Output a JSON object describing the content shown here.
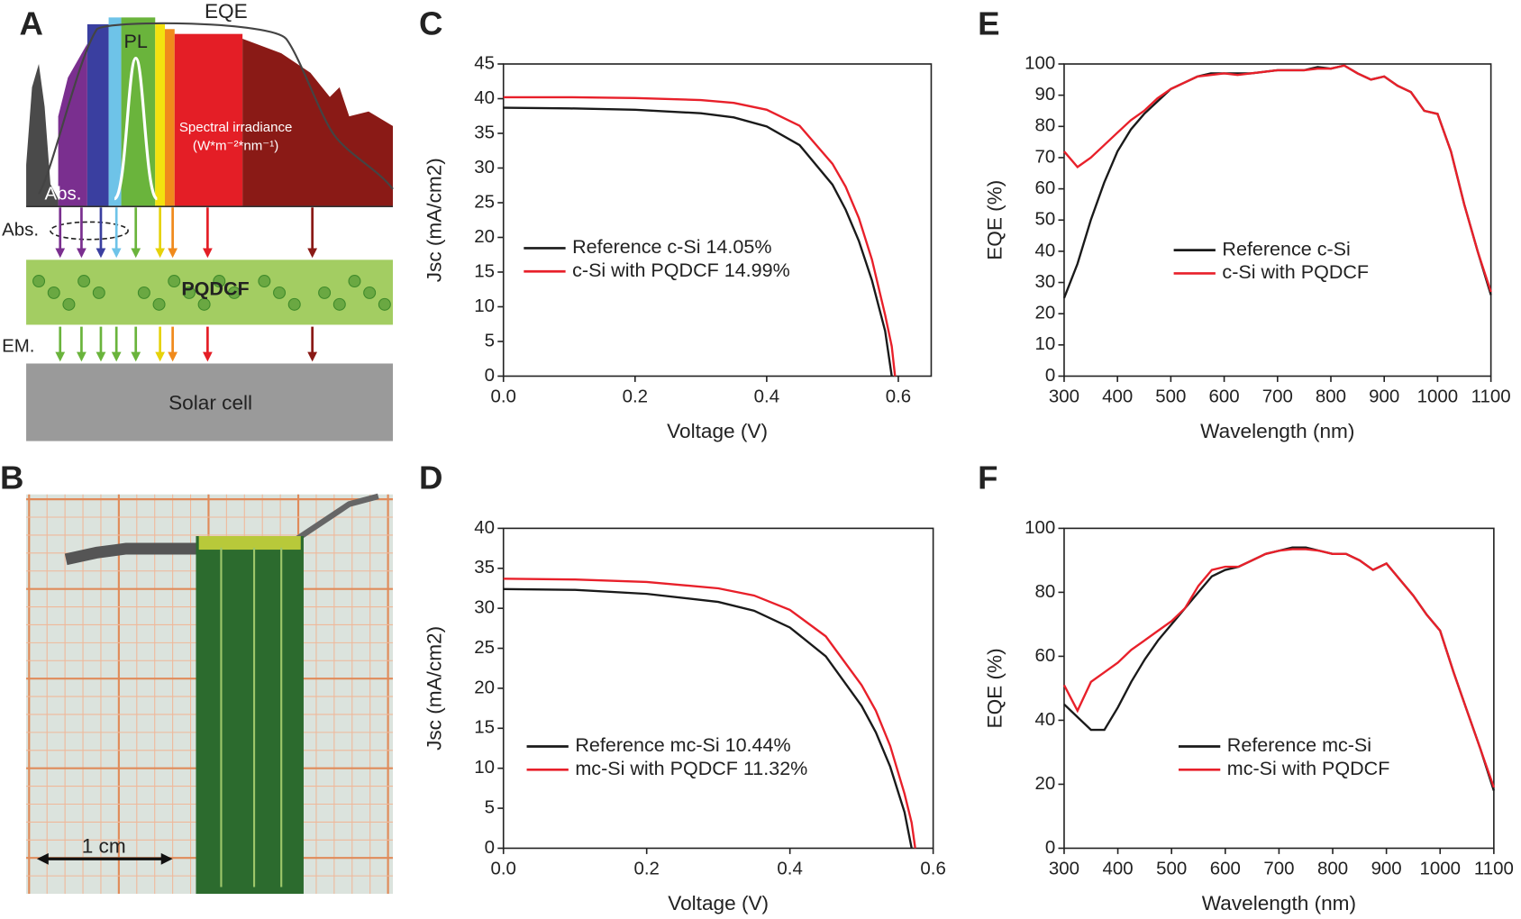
{
  "figure": {
    "panel_labels": [
      "A",
      "B",
      "C",
      "D",
      "E",
      "F"
    ],
    "schematic": {
      "eqe_label": "EQE",
      "pl_label": "PL",
      "irradiance_label": "Spectral irradiance",
      "irradiance_unit": "(W*m⁻²*nm⁻¹)",
      "abs_label": "Abs.",
      "abs_label_2": "Abs.",
      "film": "PQDCF",
      "em_label": "EM.",
      "cell": "Solar cell"
    },
    "photo": {
      "scale_label": "1 cm"
    }
  },
  "chart_data": [
    {
      "type": "line",
      "xlabel": "Voltage (V)",
      "ylabel": "Jsc (mA/cm2)",
      "x": [
        0,
        0.1,
        0.2,
        0.3,
        0.35,
        0.4,
        0.45,
        0.5,
        0.52,
        0.54,
        0.56,
        0.58,
        0.59,
        0.595
      ],
      "series": [
        {
          "name": "Reference c-Si 14.05%",
          "color": "#1a1a1a",
          "values": [
            38.7,
            38.6,
            38.4,
            37.9,
            37.3,
            36.0,
            33.3,
            27.6,
            24.0,
            19.5,
            13.8,
            6.5,
            0,
            null
          ]
        },
        {
          "name": "c-Si with PQDCF 14.99%",
          "color": "#e8202a",
          "values": [
            40.2,
            40.2,
            40.1,
            39.8,
            39.4,
            38.4,
            36.1,
            30.6,
            27.3,
            22.8,
            16.8,
            8.8,
            4.3,
            0
          ]
        }
      ],
      "xlim": [
        0,
        0.65
      ],
      "xticks": [
        {
          "value": 0,
          "label": "0.0"
        },
        0.2,
        0.4,
        0.6
      ],
      "ylim": [
        0,
        45
      ],
      "yticks": [
        0,
        5,
        10,
        15,
        20,
        25,
        30,
        35,
        40,
        45
      ]
    },
    {
      "type": "line",
      "xlabel": "Voltage (V)",
      "ylabel": "Jsc (mA/cm2)",
      "x": [
        0,
        0.1,
        0.2,
        0.3,
        0.35,
        0.4,
        0.45,
        0.5,
        0.52,
        0.54,
        0.56,
        0.57,
        0.575
      ],
      "series": [
        {
          "name": "Reference mc-Si 10.44%",
          "color": "#1a1a1a",
          "values": [
            32.4,
            32.3,
            31.8,
            30.8,
            29.7,
            27.6,
            24.0,
            17.8,
            14.5,
            10.2,
            4.5,
            0,
            null
          ]
        },
        {
          "name": "mc-Si with PQDCF 11.32%",
          "color": "#e8202a",
          "values": [
            33.7,
            33.6,
            33.3,
            32.5,
            31.6,
            29.8,
            26.5,
            20.4,
            17.2,
            12.8,
            6.8,
            3.2,
            0
          ]
        }
      ],
      "xlim": [
        0,
        0.6
      ],
      "xticks": [
        {
          "value": 0,
          "label": "0.0"
        },
        0.2,
        0.4,
        0.6
      ],
      "ylim": [
        0,
        40
      ],
      "yticks": [
        0,
        5,
        10,
        15,
        20,
        25,
        30,
        35,
        40
      ]
    },
    {
      "type": "line",
      "xlabel": "Wavelength (nm)",
      "ylabel": "EQE (%)",
      "x": [
        300,
        325,
        350,
        375,
        400,
        425,
        450,
        475,
        500,
        525,
        550,
        575,
        600,
        625,
        650,
        675,
        700,
        725,
        750,
        775,
        800,
        825,
        850,
        875,
        900,
        925,
        950,
        975,
        1000,
        1025,
        1050,
        1075,
        1100
      ],
      "series": [
        {
          "name": "Reference c-Si",
          "color": "#1a1a1a",
          "values": [
            25,
            36,
            50,
            62,
            72,
            79,
            84,
            88,
            92,
            94,
            96,
            97,
            97,
            97,
            97,
            97.5,
            98,
            98,
            98,
            99,
            98.5,
            99.5,
            97,
            95,
            96,
            93,
            91,
            85,
            84,
            72,
            55,
            40,
            26
          ]
        },
        {
          "name": "c-Si with PQDCF",
          "color": "#e8202a",
          "values": [
            72,
            67,
            70,
            74,
            78,
            82,
            85,
            89,
            92,
            94,
            96,
            96.5,
            97,
            96.5,
            97,
            97.5,
            98,
            98,
            98,
            98.5,
            98.5,
            99.5,
            97,
            95,
            96,
            93,
            91,
            85,
            84,
            72,
            55,
            40,
            27
          ]
        }
      ],
      "xlim": [
        300,
        1100
      ],
      "xticks": [
        300,
        400,
        500,
        600,
        700,
        800,
        900,
        1000,
        1100
      ],
      "ylim": [
        0,
        100
      ],
      "yticks": [
        0,
        10,
        20,
        30,
        40,
        50,
        60,
        70,
        80,
        90,
        100
      ]
    },
    {
      "type": "line",
      "xlabel": "Wavelength (nm)",
      "ylabel": "EQE (%)",
      "x": [
        300,
        325,
        350,
        375,
        400,
        425,
        450,
        475,
        500,
        525,
        550,
        575,
        600,
        625,
        650,
        675,
        700,
        725,
        750,
        775,
        800,
        825,
        850,
        875,
        900,
        925,
        950,
        975,
        1000,
        1025,
        1050,
        1075,
        1100
      ],
      "series": [
        {
          "name": "Reference mc-Si",
          "color": "#1a1a1a",
          "values": [
            45,
            41,
            37,
            37,
            44,
            52,
            59,
            65,
            70,
            75,
            80,
            85,
            87,
            88,
            90,
            92,
            93,
            94,
            94,
            93,
            92,
            92,
            90,
            87,
            89,
            84,
            79,
            73,
            68,
            55,
            43,
            31,
            18
          ]
        },
        {
          "name": "mc-Si with PQDCF",
          "color": "#e8202a",
          "values": [
            51,
            43,
            52,
            55,
            58,
            62,
            65,
            68,
            71,
            75,
            82,
            87,
            88,
            88,
            90,
            92,
            93,
            93.5,
            93.5,
            93,
            92,
            92,
            90,
            87,
            89,
            84,
            79,
            73,
            68,
            55,
            43,
            31,
            19
          ]
        }
      ],
      "xlim": [
        300,
        1100
      ],
      "xticks": [
        300,
        400,
        500,
        600,
        700,
        800,
        900,
        1000,
        1100
      ],
      "ylim": [
        0,
        100
      ],
      "yticks": [
        0,
        20,
        40,
        60,
        80,
        100
      ]
    }
  ]
}
